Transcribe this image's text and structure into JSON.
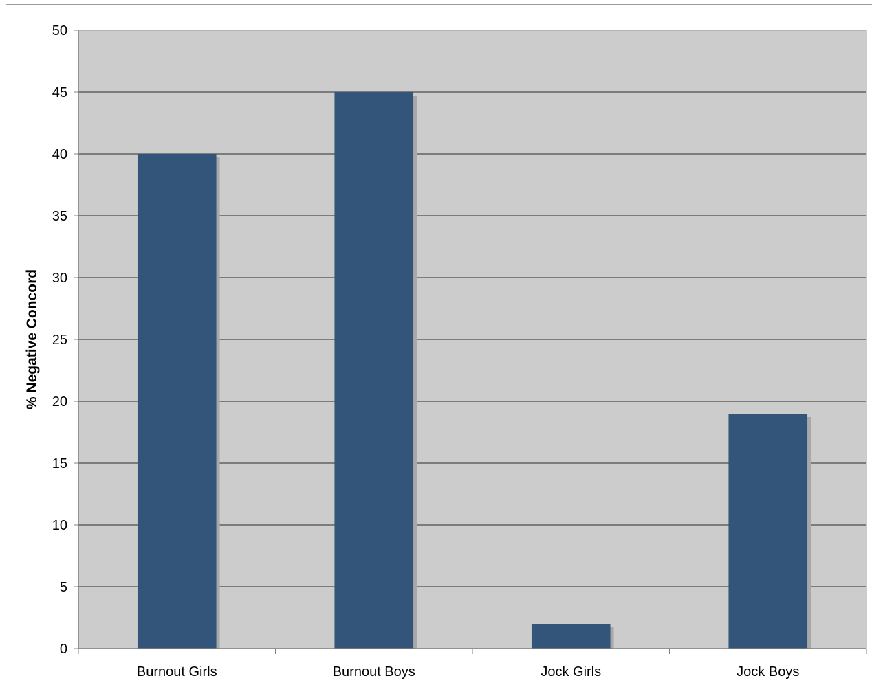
{
  "chart_data": {
    "type": "bar",
    "categories": [
      "Burnout Girls",
      "Burnout Boys",
      "Jock Girls",
      "Jock Boys"
    ],
    "values": [
      40,
      45,
      2,
      19
    ],
    "title": "",
    "xlabel": "",
    "ylabel": "% Negative Concord",
    "ylim": [
      0,
      50
    ],
    "yticks": [
      0,
      5,
      10,
      15,
      20,
      25,
      30,
      35,
      40,
      45,
      50
    ],
    "grid": true,
    "legend": "none",
    "colors": {
      "bar": "#34557a",
      "bar_shadow": "#a8a8a8",
      "plot_background": "#cccccc",
      "gridline": "#2b2b2b",
      "axis": "#808080"
    }
  }
}
